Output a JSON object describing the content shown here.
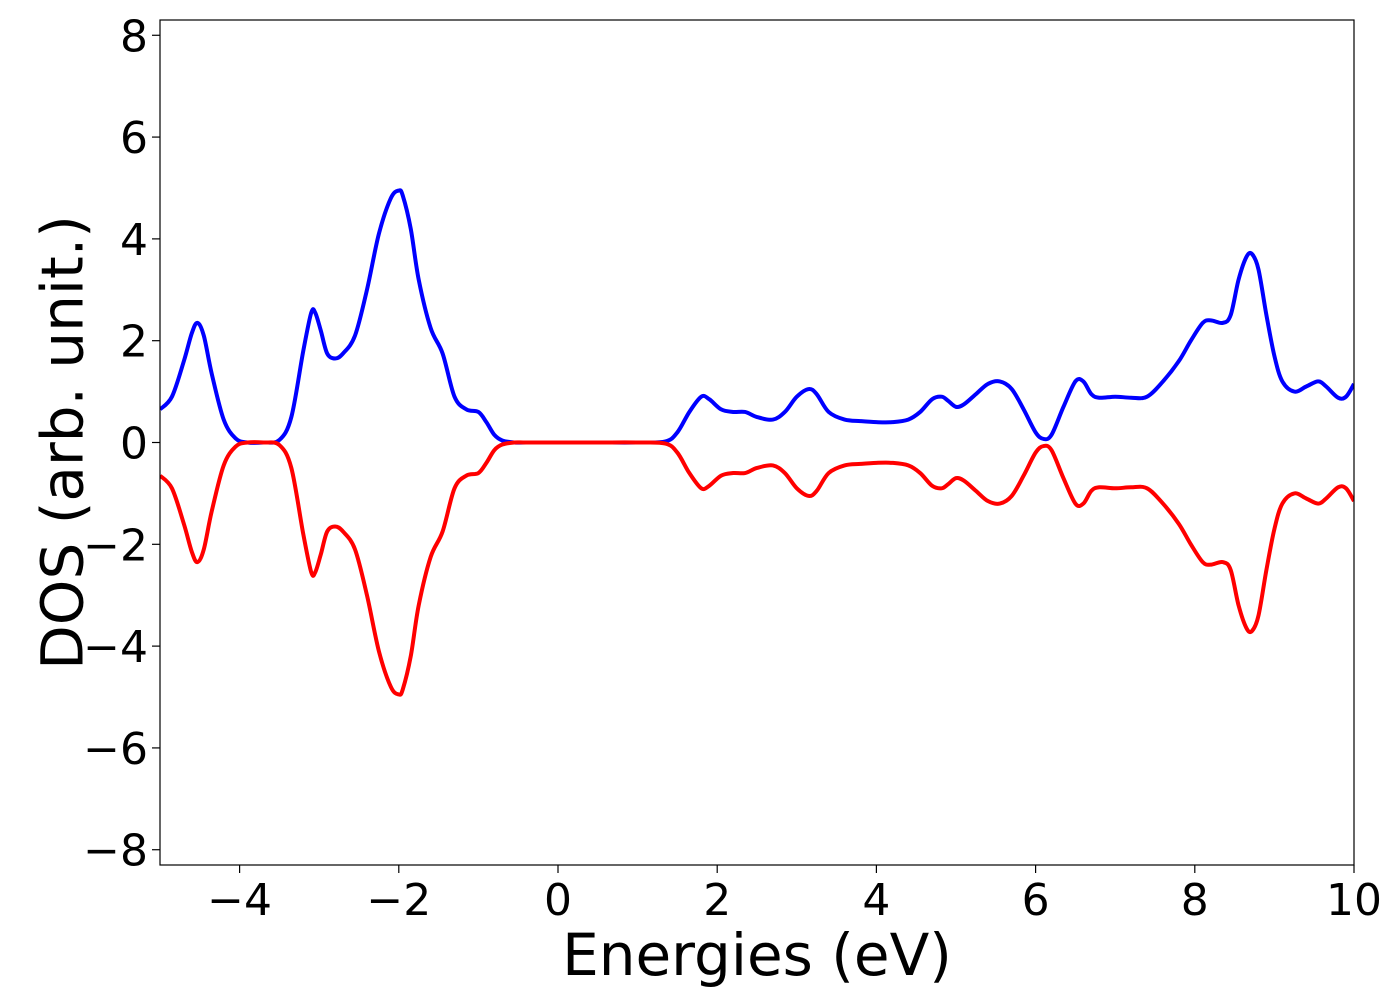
{
  "chart_data": {
    "type": "line",
    "title": "",
    "xlabel": "Energies (eV)",
    "ylabel": "DOS (arb. unit.)",
    "xlim": [
      -5,
      10
    ],
    "ylim": [
      -8.3,
      8.3
    ],
    "xticks": [
      -4,
      -2,
      0,
      2,
      4,
      6,
      8,
      10
    ],
    "xtick_labels": [
      "−4",
      "−2",
      "0",
      "2",
      "4",
      "6",
      "8",
      "10"
    ],
    "yticks": [
      8,
      6,
      4,
      2,
      0,
      -2,
      -4,
      -6,
      -8
    ],
    "ytick_labels": [
      "8",
      "6",
      "4",
      "2",
      "0",
      "−2",
      "−4",
      "−6",
      "−8"
    ],
    "grid": false,
    "legend": "none",
    "series": [
      {
        "color": "#0000ff",
        "x": [
          -5.0,
          -4.85,
          -4.7,
          -4.6,
          -4.53,
          -4.45,
          -4.35,
          -4.2,
          -4.05,
          -3.9,
          -3.7,
          -3.5,
          -3.35,
          -3.2,
          -3.1,
          -3.05,
          -2.98,
          -2.9,
          -2.8,
          -2.7,
          -2.55,
          -2.4,
          -2.25,
          -2.1,
          -2.0,
          -1.95,
          -1.85,
          -1.75,
          -1.6,
          -1.45,
          -1.3,
          -1.15,
          -1.0,
          -0.9,
          -0.8,
          -0.7,
          -0.55,
          -0.4,
          0.0,
          0.5,
          1.0,
          1.35,
          1.5,
          1.65,
          1.8,
          1.9,
          2.05,
          2.2,
          2.35,
          2.5,
          2.7,
          2.85,
          3.0,
          3.15,
          3.25,
          3.4,
          3.6,
          3.8,
          4.0,
          4.2,
          4.4,
          4.55,
          4.7,
          4.82,
          4.9,
          5.0,
          5.1,
          5.25,
          5.4,
          5.55,
          5.7,
          5.85,
          6.0,
          6.1,
          6.2,
          6.35,
          6.5,
          6.6,
          6.7,
          6.8,
          7.0,
          7.2,
          7.4,
          7.6,
          7.8,
          7.95,
          8.1,
          8.2,
          8.35,
          8.45,
          8.55,
          8.65,
          8.72,
          8.8,
          8.9,
          9.0,
          9.1,
          9.25,
          9.4,
          9.55,
          9.65,
          9.8,
          9.9,
          10.0
        ],
        "y": [
          0.65,
          0.9,
          1.6,
          2.15,
          2.35,
          2.1,
          1.35,
          0.45,
          0.08,
          0.0,
          0.0,
          0.05,
          0.5,
          1.8,
          2.55,
          2.55,
          2.2,
          1.75,
          1.65,
          1.75,
          2.1,
          3.0,
          4.1,
          4.8,
          4.95,
          4.85,
          4.2,
          3.2,
          2.25,
          1.75,
          0.9,
          0.65,
          0.6,
          0.4,
          0.15,
          0.04,
          0.0,
          0.0,
          0.0,
          0.0,
          0.0,
          0.02,
          0.2,
          0.6,
          0.9,
          0.85,
          0.65,
          0.6,
          0.6,
          0.5,
          0.45,
          0.6,
          0.9,
          1.05,
          0.95,
          0.6,
          0.45,
          0.42,
          0.4,
          0.4,
          0.45,
          0.6,
          0.85,
          0.9,
          0.82,
          0.7,
          0.75,
          0.95,
          1.15,
          1.2,
          1.05,
          0.65,
          0.2,
          0.07,
          0.15,
          0.7,
          1.2,
          1.2,
          0.95,
          0.88,
          0.9,
          0.88,
          0.9,
          1.2,
          1.6,
          2.0,
          2.35,
          2.4,
          2.35,
          2.5,
          3.2,
          3.65,
          3.7,
          3.4,
          2.5,
          1.7,
          1.2,
          1.0,
          1.1,
          1.2,
          1.1,
          0.88,
          0.9,
          1.15
        ]
      },
      {
        "color": "#ff0000",
        "x": [
          -5.0,
          -4.85,
          -4.7,
          -4.6,
          -4.53,
          -4.45,
          -4.35,
          -4.2,
          -4.05,
          -3.9,
          -3.7,
          -3.5,
          -3.35,
          -3.2,
          -3.1,
          -3.05,
          -2.98,
          -2.9,
          -2.8,
          -2.7,
          -2.55,
          -2.4,
          -2.25,
          -2.1,
          -2.0,
          -1.95,
          -1.85,
          -1.75,
          -1.6,
          -1.45,
          -1.3,
          -1.15,
          -1.0,
          -0.9,
          -0.8,
          -0.7,
          -0.55,
          -0.4,
          0.0,
          0.5,
          1.0,
          1.35,
          1.5,
          1.65,
          1.8,
          1.9,
          2.05,
          2.2,
          2.35,
          2.5,
          2.7,
          2.85,
          3.0,
          3.15,
          3.25,
          3.4,
          3.6,
          3.8,
          4.0,
          4.2,
          4.4,
          4.55,
          4.7,
          4.82,
          4.9,
          5.0,
          5.1,
          5.25,
          5.4,
          5.55,
          5.7,
          5.85,
          6.0,
          6.1,
          6.2,
          6.35,
          6.5,
          6.6,
          6.7,
          6.8,
          7.0,
          7.2,
          7.4,
          7.6,
          7.8,
          7.95,
          8.1,
          8.2,
          8.35,
          8.45,
          8.55,
          8.65,
          8.72,
          8.8,
          8.9,
          9.0,
          9.1,
          9.25,
          9.4,
          9.55,
          9.65,
          9.8,
          9.9,
          10.0
        ],
        "y": [
          -0.65,
          -0.9,
          -1.6,
          -2.15,
          -2.35,
          -2.1,
          -1.35,
          -0.45,
          -0.08,
          0.0,
          0.0,
          -0.05,
          -0.5,
          -1.8,
          -2.55,
          -2.55,
          -2.2,
          -1.75,
          -1.65,
          -1.75,
          -2.1,
          -3.0,
          -4.1,
          -4.8,
          -4.95,
          -4.85,
          -4.2,
          -3.2,
          -2.25,
          -1.75,
          -0.9,
          -0.65,
          -0.6,
          -0.4,
          -0.15,
          -0.04,
          0.0,
          0.0,
          0.0,
          0.0,
          0.0,
          -0.02,
          -0.2,
          -0.6,
          -0.9,
          -0.85,
          -0.65,
          -0.6,
          -0.6,
          -0.5,
          -0.45,
          -0.6,
          -0.9,
          -1.05,
          -0.95,
          -0.6,
          -0.45,
          -0.42,
          -0.4,
          -0.4,
          -0.45,
          -0.6,
          -0.85,
          -0.9,
          -0.82,
          -0.7,
          -0.75,
          -0.95,
          -1.15,
          -1.2,
          -1.05,
          -0.65,
          -0.2,
          -0.07,
          -0.15,
          -0.7,
          -1.2,
          -1.2,
          -0.95,
          -0.88,
          -0.9,
          -0.88,
          -0.9,
          -1.2,
          -1.6,
          -2.0,
          -2.35,
          -2.4,
          -2.35,
          -2.5,
          -3.2,
          -3.65,
          -3.7,
          -3.4,
          -2.5,
          -1.7,
          -1.2,
          -1.0,
          -1.1,
          -1.2,
          -1.1,
          -0.88,
          -0.9,
          -1.15
        ]
      }
    ]
  }
}
